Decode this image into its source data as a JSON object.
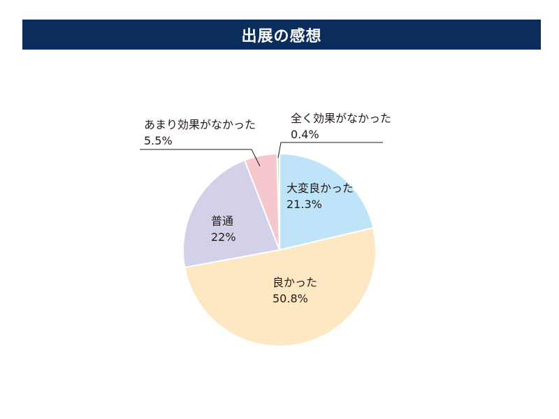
{
  "header": {
    "title": "出展の感想"
  },
  "chart_data": {
    "type": "pie",
    "title": "出展の感想",
    "start": "12 o'clock, clockwise",
    "slices": [
      {
        "label": "大変良かった",
        "value": 21.3,
        "value_label": "21.3%",
        "color": "#bfe3f8"
      },
      {
        "label": "良かった",
        "value": 50.8,
        "value_label": "50.8%",
        "color": "#fde8c3"
      },
      {
        "label": "普通",
        "value": 22,
        "value_label": "22%",
        "color": "#d3d1ea"
      },
      {
        "label": "あまり効果がなかった",
        "value": 5.5,
        "value_label": "5.5%",
        "color": "#f6c8ce"
      },
      {
        "label": "全く効果がなかった",
        "value": 0.4,
        "value_label": "0.4%",
        "color": "#c0e0bd"
      }
    ]
  }
}
